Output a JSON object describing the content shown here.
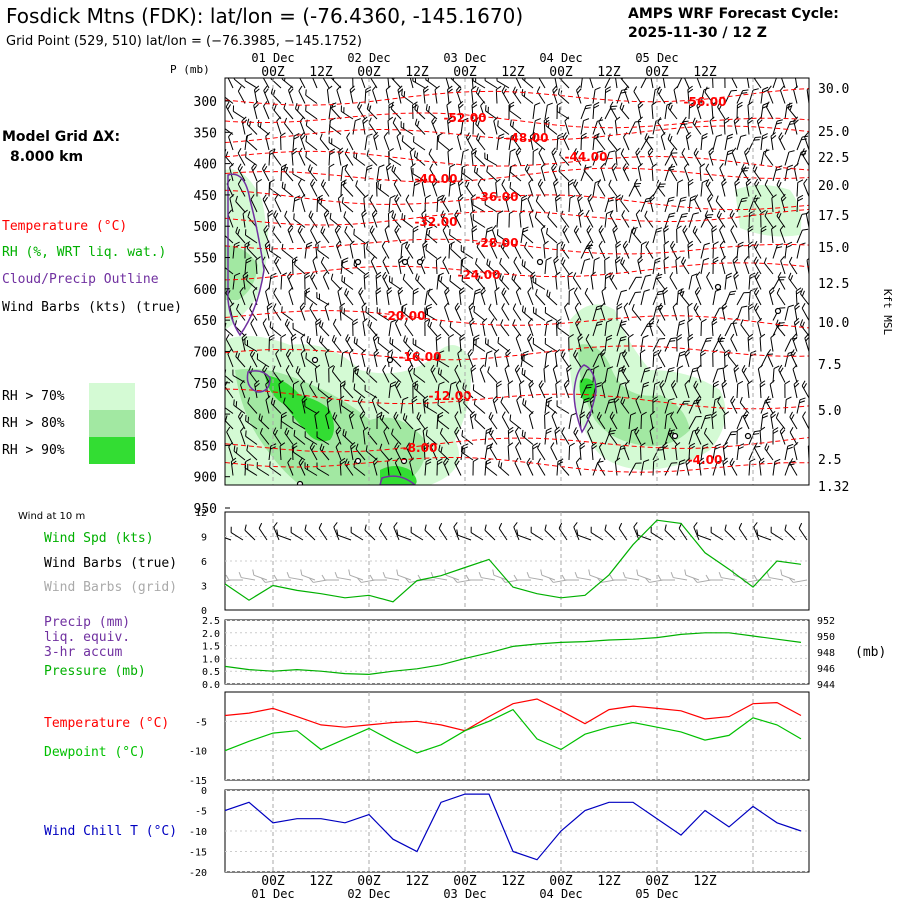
{
  "header": {
    "title": "Fosdick Mtns (FDK):  lat/lon = (-76.4360, -145.1670)",
    "grid_point": "Grid Point (529, 510) lat/lon = (−76.3985, −145.1752)",
    "cycle_label": "AMPS WRF Forecast Cycle:",
    "cycle_value": "2025-11-30 / 12  Z"
  },
  "colors": {
    "temperature": "#ff0000",
    "rh": "#00b000",
    "cloud": "#7030a0",
    "wind": "#000000",
    "wind_grid": "#aaaaaa",
    "precip": "#7030a0",
    "dewpoint": "#00c000",
    "windchill": "#0000c0",
    "rh70": "#d4fad4",
    "rh80": "#a2e8a2",
    "rh90": "#33dd33"
  },
  "left_legend": {
    "model_grid_label": "Model Grid ΔX:",
    "model_grid_value": "8.000 km",
    "temperature": "Temperature (°C)",
    "rh": "RH (%, WRT liq. wat.)",
    "cloud": "Cloud/Precip Outline",
    "wind_barbs": "Wind Barbs (kts) (true)",
    "rh70": "RH > 70%",
    "rh80": "RH > 80%",
    "rh90": "RH > 90%"
  },
  "chart_data": [
    {
      "name": "time-height cross section",
      "type": "heatmap",
      "time_ticks_top": [
        "00Z",
        "12Z",
        "00Z",
        "12Z",
        "00Z",
        "12Z",
        "00Z",
        "12Z",
        "00Z",
        "12Z"
      ],
      "date_ticks_top": [
        "01 Dec",
        "02 Dec",
        "03 Dec",
        "04 Dec",
        "05 Dec"
      ],
      "y_axis_title": "P (mb)",
      "pressure_levels": [
        300,
        350,
        400,
        450,
        500,
        550,
        600,
        650,
        700,
        750,
        800,
        850,
        900,
        950
      ],
      "right_axis_title": "Kft MSL",
      "kft_ticks": [
        "30.0",
        "25.0",
        "22.5",
        "20.0",
        "17.5",
        "15.0",
        "12.5",
        "10.0",
        "7.5",
        "5.0",
        "2.5",
        "1.32"
      ],
      "temperature_labels": [
        "-56.00",
        "-52.00",
        "-48.00",
        "-44.00",
        "-40.00",
        "-36.00",
        "-32.00",
        "-28.00",
        "-24.00",
        "-20.00",
        "-16.00",
        "-12.00",
        "-8.00",
        "-4.00"
      ]
    },
    {
      "name": "wind at 10 m",
      "type": "line",
      "panel_label": "Wind at 10 m",
      "legend": [
        "Wind Spd (kts)",
        "Wind Barbs (true)",
        "Wind Barbs (grid)"
      ],
      "yticks": [
        0,
        3,
        6,
        9,
        12
      ],
      "ylim": [
        0,
        12
      ],
      "x_hours": [
        0,
        6,
        12,
        18,
        24,
        30,
        36,
        42,
        48,
        54,
        60,
        66,
        72,
        78,
        84,
        90,
        96,
        102,
        108,
        114,
        120,
        126,
        132,
        138,
        144
      ],
      "wind_speed": [
        3.2,
        1.2,
        3.0,
        2.4,
        2.0,
        1.5,
        1.8,
        1.0,
        3.6,
        4.2,
        5.2,
        6.2,
        2.8,
        2.0,
        1.5,
        1.8,
        4.3,
        8.0,
        11.0,
        10.6,
        7.0,
        5.0,
        2.8,
        6.0,
        5.6
      ]
    },
    {
      "name": "precip and pressure",
      "type": "line",
      "legend": [
        "Precip (mm)",
        "liq. equiv.",
        "3-hr accum",
        "Pressure (mb)"
      ],
      "yticks_left": [
        "0.0",
        "0.5",
        "1.0",
        "1.5",
        "2.0",
        "2.5"
      ],
      "yticks_right": [
        "944",
        "946",
        "948",
        "950",
        "952"
      ],
      "right_unit": "(mb)",
      "precip_ylim": [
        0,
        2.5
      ],
      "pressure_ylim": [
        944,
        952
      ],
      "x_hours": [
        0,
        6,
        12,
        18,
        24,
        30,
        36,
        42,
        48,
        54,
        60,
        66,
        72,
        78,
        84,
        90,
        96,
        102,
        108,
        114,
        120,
        126,
        132,
        138,
        144
      ],
      "pressure": [
        946.2,
        945.8,
        945.6,
        945.8,
        945.6,
        945.3,
        945.2,
        945.6,
        945.9,
        946.4,
        947.2,
        947.9,
        948.7,
        949.0,
        949.2,
        949.3,
        949.5,
        949.6,
        949.8,
        950.2,
        950.4,
        950.4,
        950.0,
        949.6,
        949.2
      ]
    },
    {
      "name": "temperature and dewpoint",
      "type": "line",
      "legend": [
        "Temperature (°C)",
        "Dewpoint (°C)"
      ],
      "yticks": [
        -15,
        -10,
        -5
      ],
      "ylim": [
        -15,
        0
      ],
      "x_hours": [
        0,
        6,
        12,
        18,
        24,
        30,
        36,
        42,
        48,
        54,
        60,
        66,
        72,
        78,
        84,
        90,
        96,
        102,
        108,
        114,
        120,
        126,
        132,
        138,
        144
      ],
      "temperature": [
        -4.0,
        -3.6,
        -2.8,
        -4.2,
        -5.6,
        -6.0,
        -5.6,
        -5.2,
        -5.0,
        -5.6,
        -6.6,
        -4.2,
        -2.0,
        -1.2,
        -3.2,
        -5.4,
        -3.0,
        -2.4,
        -2.8,
        -3.2,
        -4.6,
        -4.2,
        -2.0,
        -1.8,
        -4.0
      ],
      "dewpoint": [
        -10.0,
        -8.4,
        -7.0,
        -6.6,
        -9.8,
        -8.0,
        -6.2,
        -8.4,
        -10.4,
        -9.0,
        -6.6,
        -5.0,
        -3.0,
        -8.0,
        -9.8,
        -7.2,
        -6.0,
        -5.2,
        -6.0,
        -6.8,
        -8.2,
        -7.4,
        -4.4,
        -5.6,
        -8.0
      ]
    },
    {
      "name": "wind chill",
      "type": "line",
      "legend": [
        "Wind Chill T (°C)"
      ],
      "yticks": [
        -20,
        -15,
        -10,
        -5,
        0
      ],
      "ylim": [
        -20,
        0
      ],
      "x_hours": [
        0,
        6,
        12,
        18,
        24,
        30,
        36,
        42,
        48,
        54,
        60,
        66,
        72,
        78,
        84,
        90,
        96,
        102,
        108,
        114,
        120,
        126,
        132,
        138,
        144
      ],
      "wind_chill": [
        -5,
        -3,
        -8,
        -7,
        -7,
        -8,
        -6,
        -12,
        -15,
        -3,
        -1,
        -1,
        -15,
        -17,
        -10,
        -5,
        -3,
        -3,
        -7,
        -11,
        -5,
        -9,
        -4,
        -8,
        -10
      ]
    }
  ],
  "bottom_axis": {
    "time_ticks": [
      "00Z",
      "12Z",
      "00Z",
      "12Z",
      "00Z",
      "12Z",
      "00Z",
      "12Z",
      "00Z",
      "12Z"
    ],
    "date_ticks": [
      "01 Dec",
      "02 Dec",
      "03 Dec",
      "04 Dec",
      "05 Dec"
    ]
  }
}
